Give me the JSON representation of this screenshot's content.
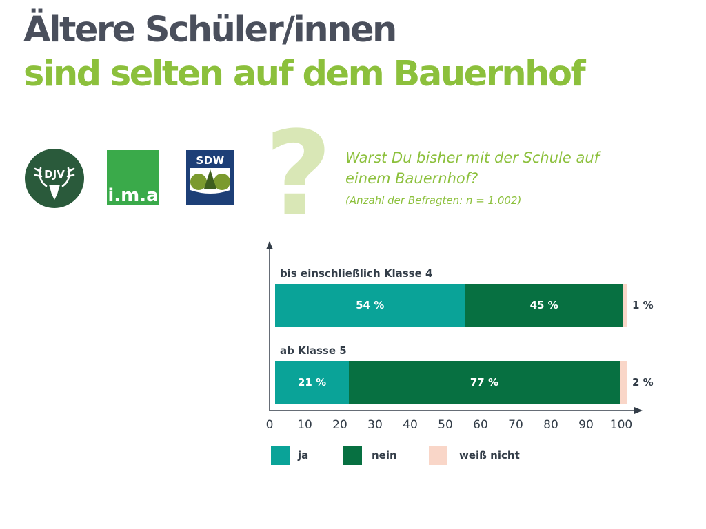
{
  "header": {
    "title_line1": "Ältere Schüler/innen",
    "title_line2": "sind selten auf dem Bauernhof"
  },
  "logos": {
    "djv": "DJV",
    "ima": "i.m.a",
    "sdw": "SDW"
  },
  "question": {
    "mark": "?",
    "text": "Warst Du bisher mit der Schule auf einem Bauernhof?",
    "sample": "(Anzahl der Befragten: n = 1.002)"
  },
  "colors": {
    "ja": "#0aa398",
    "nein": "#077041",
    "weiss_nicht": "#f9d6c8"
  },
  "chart_data": {
    "type": "bar",
    "orientation": "horizontal",
    "stacked": true,
    "categories": [
      "bis einschließlich Klasse 4",
      "ab Klasse 5"
    ],
    "series": [
      {
        "name": "ja",
        "values": [
          54,
          21
        ],
        "labels": [
          "54 %",
          "21 %"
        ]
      },
      {
        "name": "nein",
        "values": [
          45,
          77
        ],
        "labels": [
          "45 %",
          "77 %"
        ]
      },
      {
        "name": "weiß nicht",
        "values": [
          1,
          2
        ],
        "labels": [
          "1 %",
          "2 %"
        ]
      }
    ],
    "xlim": [
      0,
      100
    ],
    "xticks": [
      "0",
      "10",
      "20",
      "30",
      "40",
      "50",
      "60",
      "70",
      "80",
      "90",
      "100"
    ],
    "legend": "bottom"
  }
}
